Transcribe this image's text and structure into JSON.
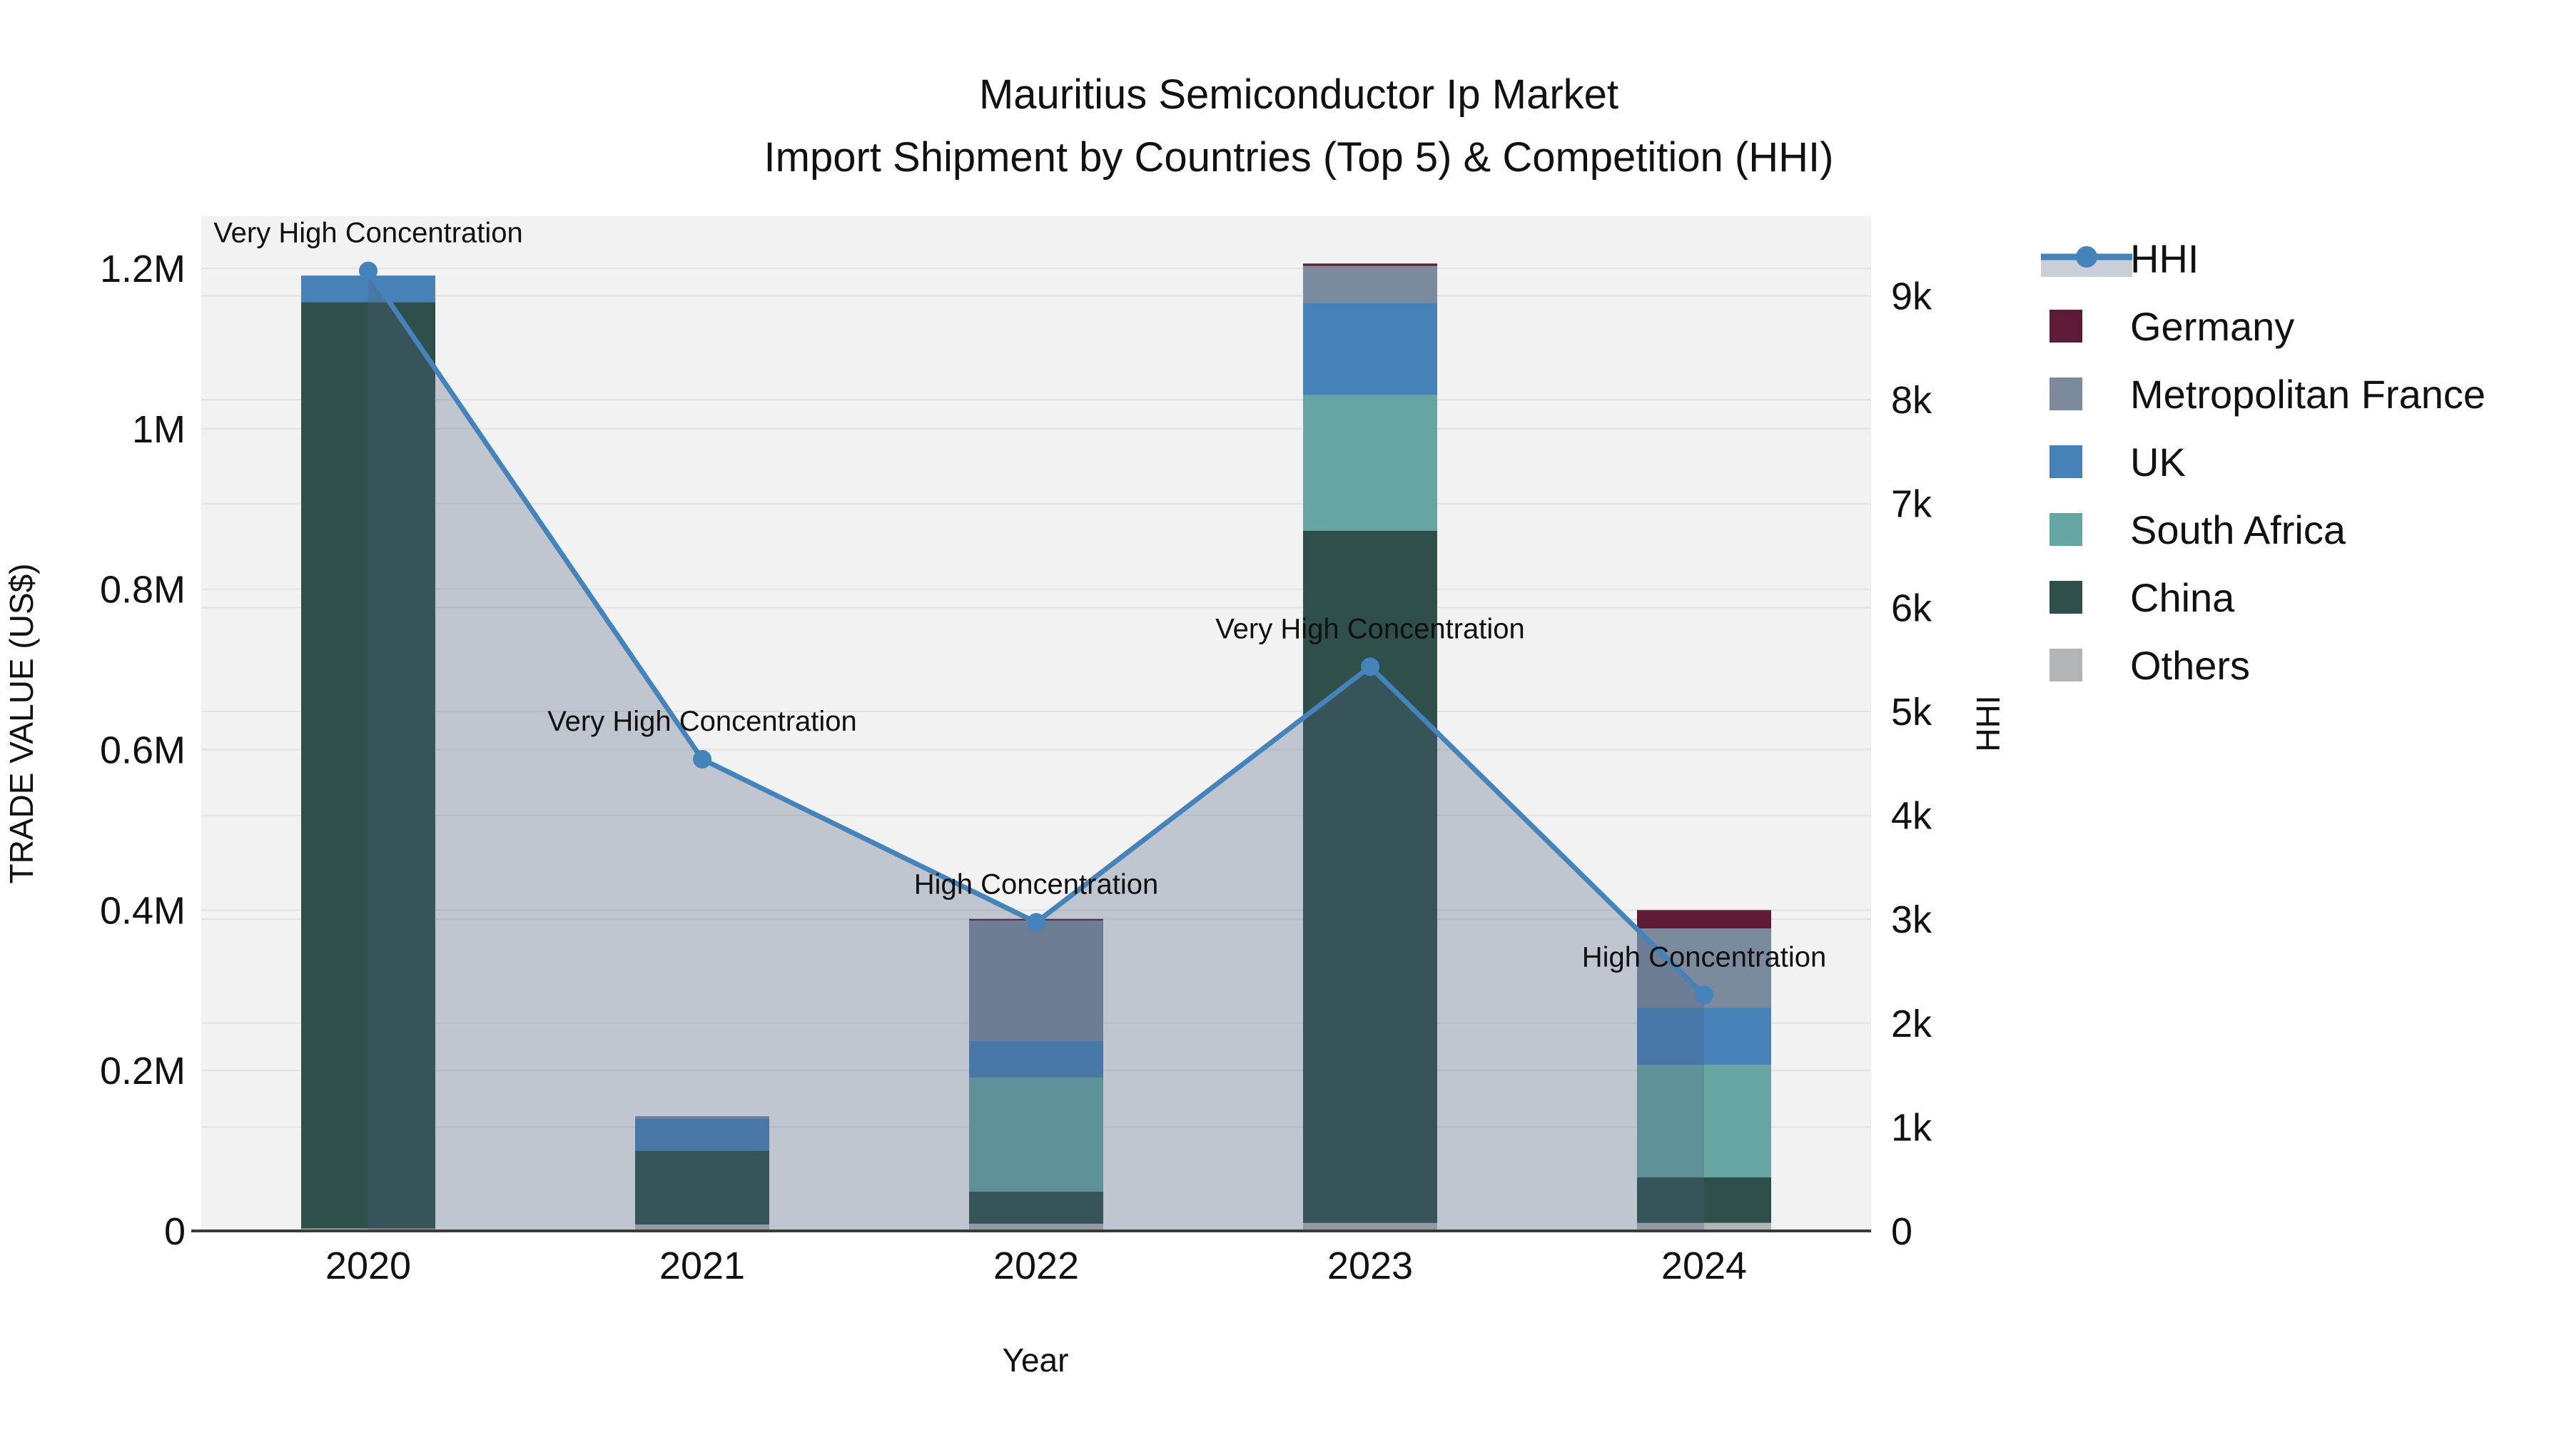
{
  "title": {
    "line1": "Mauritius Semiconductor Ip Market",
    "line2": "Import Shipment by Countries (Top 5) & Competition (HHI)"
  },
  "axes": {
    "x_title": "Year",
    "y_left_title": "TRADE VALUE (US$)",
    "y_right_title": "HHI",
    "y_left_ticks": [
      {
        "value": 0,
        "label": "0"
      },
      {
        "value": 200000,
        "label": "0.2M"
      },
      {
        "value": 400000,
        "label": "0.4M"
      },
      {
        "value": 600000,
        "label": "0.6M"
      },
      {
        "value": 800000,
        "label": "0.8M"
      },
      {
        "value": 1000000,
        "label": "1M"
      },
      {
        "value": 1200000,
        "label": "1.2M"
      }
    ],
    "y_right_ticks": [
      {
        "value": 0,
        "label": "0"
      },
      {
        "value": 1000,
        "label": "1k"
      },
      {
        "value": 2000,
        "label": "2k"
      },
      {
        "value": 3000,
        "label": "3k"
      },
      {
        "value": 4000,
        "label": "4k"
      },
      {
        "value": 5000,
        "label": "5k"
      },
      {
        "value": 6000,
        "label": "6k"
      },
      {
        "value": 7000,
        "label": "7k"
      },
      {
        "value": 8000,
        "label": "8k"
      },
      {
        "value": 9000,
        "label": "9k"
      }
    ]
  },
  "colors": {
    "plot_bg": "#f2f2f2",
    "grid": "#e3e3e3",
    "axis_line": "#3a3a3a",
    "hhi_line": "#4583bb",
    "hhi_fill": "rgba(75,95,125,0.30)",
    "legend_hhi_band": "#c9ced8"
  },
  "legend": {
    "items": [
      {
        "label": "HHI",
        "type": "line",
        "color": "#4583bb"
      },
      {
        "label": "Germany",
        "type": "swatch",
        "color": "#5e1b38"
      },
      {
        "label": "Metropolitan France",
        "type": "swatch",
        "color": "#7b8a9c"
      },
      {
        "label": "UK",
        "type": "swatch",
        "color": "#4682b8"
      },
      {
        "label": "South Africa",
        "type": "swatch",
        "color": "#66a5a2"
      },
      {
        "label": "China",
        "type": "swatch",
        "color": "#2f4f4b"
      },
      {
        "label": "Others",
        "type": "swatch",
        "color": "#b2b4b6"
      }
    ]
  },
  "chart_data": {
    "type": "bar+line",
    "title": "Mauritius Semiconductor Ip Market — Import Shipment by Countries (Top 5) & Competition (HHI)",
    "xlabel": "Year",
    "ylabel_left": "TRADE VALUE (US$)",
    "ylabel_right": "HHI",
    "categories": [
      "2020",
      "2021",
      "2022",
      "2023",
      "2024"
    ],
    "stack_note": "series listed top-of-stack first; last series sits on the x-axis",
    "series": [
      {
        "name": "Germany",
        "color": "#5e1b38",
        "values": [
          0,
          0,
          2000,
          3000,
          23000
        ]
      },
      {
        "name": "Metropolitan France",
        "color": "#7b8a9c",
        "values": [
          0,
          3000,
          150000,
          46000,
          99000
        ]
      },
      {
        "name": "UK",
        "color": "#4682b8",
        "values": [
          33000,
          40000,
          46000,
          115000,
          71000
        ]
      },
      {
        "name": "South Africa",
        "color": "#66a5a2",
        "values": [
          0,
          0,
          142000,
          169000,
          140000
        ]
      },
      {
        "name": "China",
        "color": "#2f4f4b",
        "values": [
          1155000,
          92000,
          40000,
          863000,
          57000
        ]
      },
      {
        "name": "Others",
        "color": "#b2b4b6",
        "values": [
          3000,
          8000,
          9000,
          10000,
          10000
        ]
      }
    ],
    "line_series": {
      "name": "HHI",
      "axis": "right",
      "color": "#4583bb",
      "values": [
        9240,
        4540,
        2970,
        5430,
        2270
      ]
    },
    "annotations": [
      {
        "category": "2020",
        "text": "Very High Concentration"
      },
      {
        "category": "2021",
        "text": "Very High Concentration"
      },
      {
        "category": "2022",
        "text": "High Concentration"
      },
      {
        "category": "2023",
        "text": "Very High Concentration"
      },
      {
        "category": "2024",
        "text": "High Concentration"
      }
    ],
    "y_left_range": [
      0,
      1265000
    ],
    "y_right_range": [
      0,
      9766
    ],
    "grid": true,
    "legend_position": "right"
  }
}
